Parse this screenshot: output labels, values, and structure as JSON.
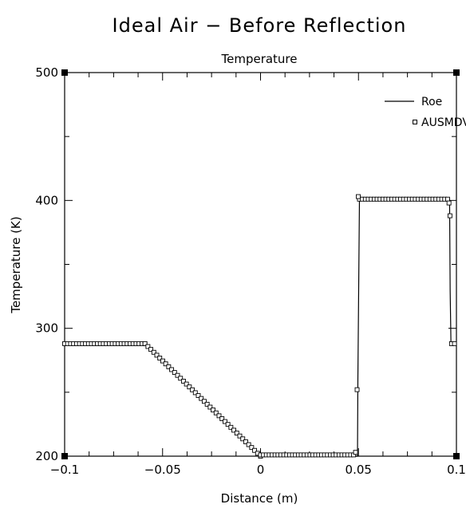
{
  "chart_data": {
    "type": "line",
    "title": "Ideal Air − Before Reflection",
    "subtitle": "Temperature",
    "xlabel": "Distance (m)",
    "ylabel": "Temperature (K)",
    "xlim": [
      -0.1,
      0.1
    ],
    "ylim": [
      200,
      500
    ],
    "xticks": [
      -0.1,
      -0.05,
      0,
      0.05,
      0.1
    ],
    "xtick_labels": [
      "−0.1",
      "−0.05",
      "0",
      "0.05",
      "0.1"
    ],
    "yticks": [
      200,
      300,
      400,
      500
    ],
    "ytick_labels": [
      "200",
      "300",
      "400",
      "500"
    ],
    "grid": false,
    "legend_position": "top-right",
    "series": [
      {
        "name": "Roe",
        "style": "line",
        "x": [
          -0.1,
          -0.059,
          0.0,
          0.0495,
          0.0497,
          0.0505,
          0.0965,
          0.0968,
          0.0972,
          0.1
        ],
        "y": [
          288,
          288,
          200,
          200,
          260,
          401,
          401,
          330,
          289,
          289
        ]
      },
      {
        "name": "AUSMDV",
        "style": "markers",
        "segments": [
          {
            "x_start": -0.1,
            "x_end": -0.059,
            "step": 0.0015,
            "y_start": 288,
            "y_end": 288
          },
          {
            "x_start": -0.059,
            "x_end": 0.0,
            "step": 0.0015,
            "y_start": 288,
            "y_end": 200
          },
          {
            "x_start": 0.0,
            "x_end": 0.0475,
            "step": 0.0015,
            "y_start": 201,
            "y_end": 201
          },
          {
            "x_start": 0.0505,
            "x_end": 0.0955,
            "step": 0.0015,
            "y_start": 401,
            "y_end": 401
          }
        ],
        "points": [
          {
            "x": 0.0485,
            "y": 203
          },
          {
            "x": 0.0493,
            "y": 252
          },
          {
            "x": 0.0499,
            "y": 403
          },
          {
            "x": 0.0962,
            "y": 398
          },
          {
            "x": 0.0967,
            "y": 388
          },
          {
            "x": 0.0975,
            "y": 288
          },
          {
            "x": 0.099,
            "y": 288
          }
        ]
      }
    ]
  }
}
